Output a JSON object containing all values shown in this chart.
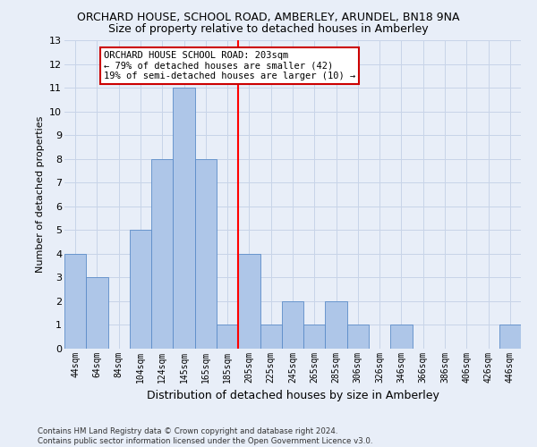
{
  "title": "ORCHARD HOUSE, SCHOOL ROAD, AMBERLEY, ARUNDEL, BN18 9NA",
  "subtitle": "Size of property relative to detached houses in Amberley",
  "xlabel": "Distribution of detached houses by size in Amberley",
  "ylabel": "Number of detached properties",
  "categories": [
    "44sqm",
    "64sqm",
    "84sqm",
    "104sqm",
    "124sqm",
    "145sqm",
    "165sqm",
    "185sqm",
    "205sqm",
    "225sqm",
    "245sqm",
    "265sqm",
    "285sqm",
    "306sqm",
    "326sqm",
    "346sqm",
    "366sqm",
    "386sqm",
    "406sqm",
    "426sqm",
    "446sqm"
  ],
  "values": [
    4,
    3,
    0,
    5,
    8,
    11,
    8,
    1,
    4,
    1,
    2,
    1,
    2,
    1,
    0,
    1,
    0,
    0,
    0,
    0,
    1
  ],
  "bar_color": "#aec6e8",
  "bar_edge_color": "#5b8cc8",
  "grid_color": "#c8d4e8",
  "background_color": "#e8eef8",
  "red_line_index": 8,
  "annotation_text": "ORCHARD HOUSE SCHOOL ROAD: 203sqm\n← 79% of detached houses are smaller (42)\n19% of semi-detached houses are larger (10) →",
  "annotation_box_color": "#ffffff",
  "annotation_box_edge_color": "#cc0000",
  "footer_text": "Contains HM Land Registry data © Crown copyright and database right 2024.\nContains public sector information licensed under the Open Government Licence v3.0.",
  "ylim": [
    0,
    13
  ],
  "yticks": [
    0,
    1,
    2,
    3,
    4,
    5,
    6,
    7,
    8,
    9,
    10,
    11,
    12,
    13
  ],
  "title_fontsize": 9,
  "subtitle_fontsize": 9,
  "ylabel_fontsize": 8,
  "xlabel_fontsize": 9
}
